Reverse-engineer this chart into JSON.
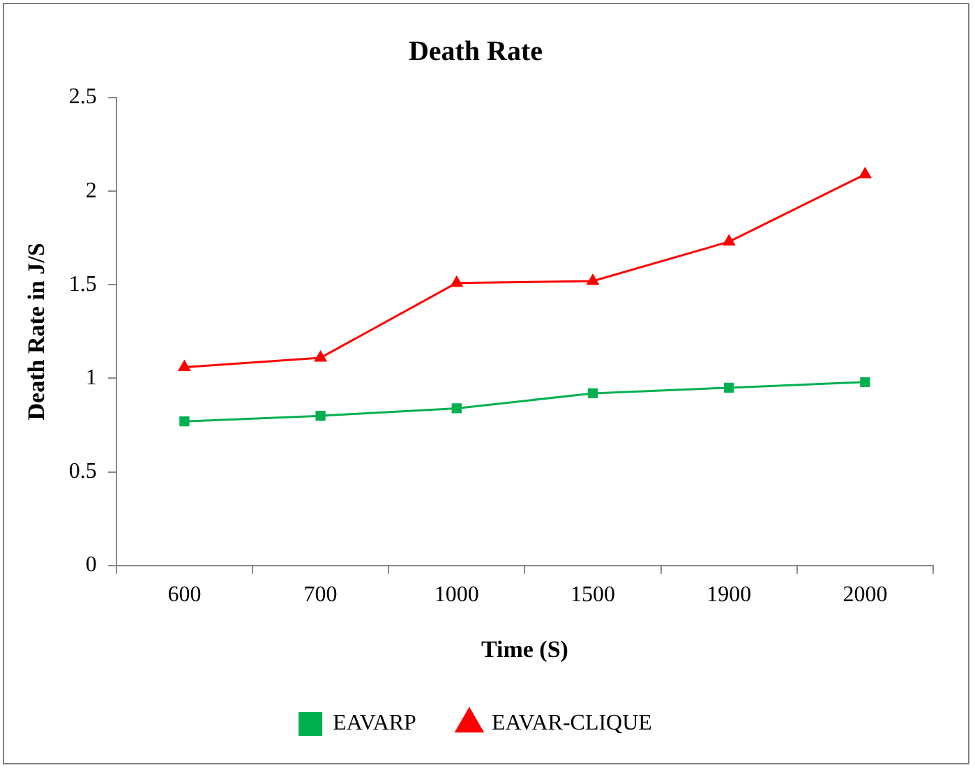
{
  "chart_data": {
    "type": "line",
    "title": "Death Rate",
    "xlabel": "Time (S)",
    "ylabel": "Death Rate in J/S",
    "categories": [
      "600",
      "700",
      "1000",
      "1500",
      "1900",
      "2000"
    ],
    "series": [
      {
        "name": "EAVARP",
        "color": "#00b050",
        "marker": "square",
        "values": [
          0.77,
          0.8,
          0.84,
          0.92,
          0.95,
          0.98
        ]
      },
      {
        "name": "EAVAR-CLIQUE",
        "color": "#ff0000",
        "marker": "triangle",
        "values": [
          1.06,
          1.11,
          1.51,
          1.52,
          1.73,
          2.09
        ]
      }
    ],
    "ylim": [
      0,
      2.5
    ],
    "yticks": [
      0,
      0.5,
      1,
      1.5,
      2,
      2.5
    ],
    "grid": false,
    "legend": "bottom",
    "line_style": "solid"
  }
}
